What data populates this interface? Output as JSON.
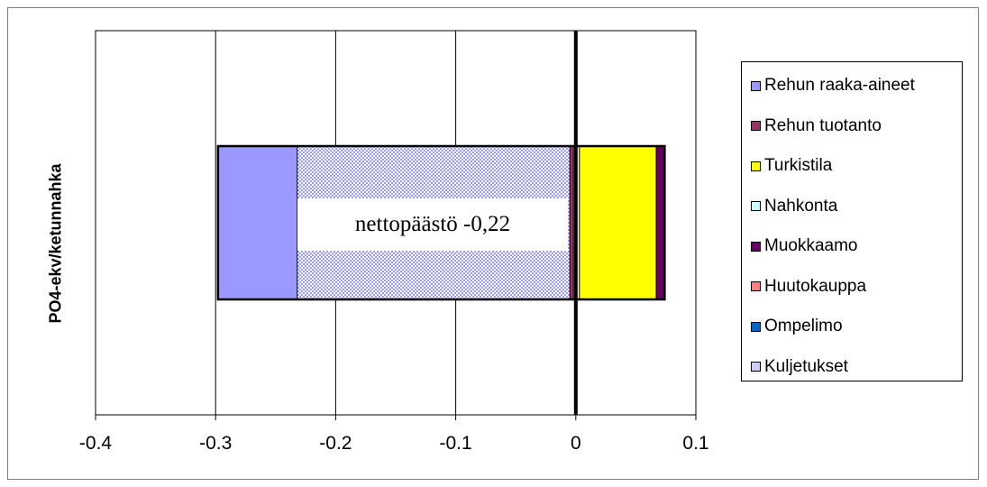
{
  "chart_data": {
    "type": "bar",
    "orientation": "horizontal",
    "stacked": true,
    "ylabel": "PO4-ekv/ketunnahka",
    "xlim": [
      -0.4,
      0.1
    ],
    "xticks": [
      "-0.4",
      "-0.3",
      "-0.2",
      "-0.1",
      "0",
      "0.1"
    ],
    "grid": true,
    "legend_position": "right",
    "series": [
      {
        "name": "Rehun raaka-aineet",
        "color": "#9999ff",
        "segments": [
          [
            -0.298,
            -0.232
          ]
        ]
      },
      {
        "name": "Rehun tuotanto",
        "color": "#993366",
        "segments": [
          [
            -0.005,
            -0.002
          ]
        ]
      },
      {
        "name": "Turkistila",
        "color": "#ffff00",
        "segments": [
          [
            0.003,
            0.067
          ]
        ]
      },
      {
        "name": "Nahkonta",
        "color": "#ccffff",
        "segments": []
      },
      {
        "name": "Muokkaamo",
        "color": "#660066",
        "segments": [
          [
            0.067,
            0.074
          ]
        ]
      },
      {
        "name": "Huutokauppa",
        "color": "#ff8080",
        "segments": []
      },
      {
        "name": "Ompelimo",
        "color": "#0066cc",
        "segments": []
      },
      {
        "name": "Kuljetukset",
        "color": "#ccccff",
        "segments": []
      }
    ],
    "hatched_region": {
      "from": -0.232,
      "to": -0.005,
      "color": "#9999ff"
    },
    "bar_total_range": [
      -0.298,
      0.074
    ],
    "annotation": "nettopäästö -0,22"
  }
}
